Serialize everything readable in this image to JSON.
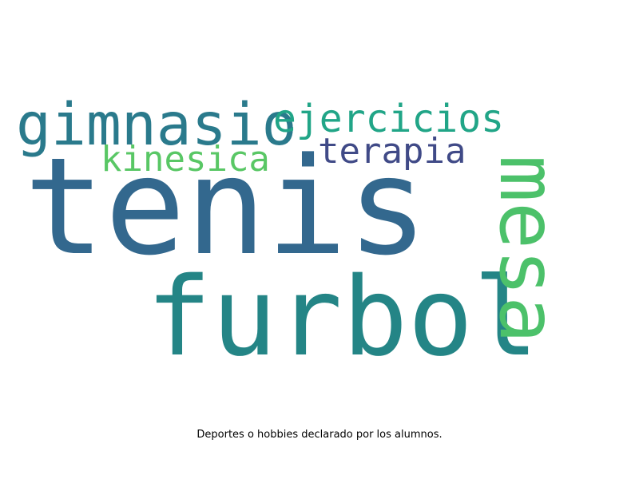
{
  "wordcloud": {
    "words": [
      {
        "text": "tenis",
        "color": "#33688e"
      },
      {
        "text": "furbol",
        "color": "#248586"
      },
      {
        "text": "mesa",
        "color": "#4cc16a"
      },
      {
        "text": "gimnasio",
        "color": "#2a7a8c"
      },
      {
        "text": "ejercicios",
        "color": "#21a587"
      },
      {
        "text": "kinesica",
        "color": "#59c765"
      },
      {
        "text": "terapia",
        "color": "#404a87"
      }
    ]
  },
  "caption": "Deportes o hobbies declarado por los alumnos."
}
